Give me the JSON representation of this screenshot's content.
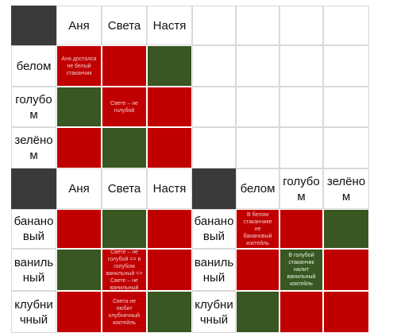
{
  "colors": {
    "red": "#c00000",
    "green": "#385723",
    "dark": "#3a3a3a"
  },
  "top": {
    "headers": [
      "Аня",
      "Света",
      "Настя"
    ],
    "rows": [
      "белом",
      "голубо м",
      "зелёно м"
    ],
    "notes": {
      "r0c0": "Аня достался не белый стаканчик",
      "r1c1": "Свете – не голубой"
    }
  },
  "bottom_left": {
    "headers": [
      "Аня",
      "Света",
      "Настя"
    ],
    "rows": [
      "банано вый",
      "ваниль ный",
      "клубни чный"
    ],
    "notes": {
      "r1c1": "Свете – не голубой => в голубом ванильный => Свете – не ванильный",
      "r2c1": "Света не любит клубничный коктейль"
    }
  },
  "bottom_right": {
    "headers": [
      "белом",
      "голубо м",
      "зелёно м"
    ],
    "rows": [
      "банано вый",
      "ваниль ный",
      "клубни чный"
    ],
    "notes": {
      "r0c0": "В белом стаканчике не банановый коктейль",
      "r1c1": "В голубой стаканчик налит ванильный коктейль"
    }
  }
}
